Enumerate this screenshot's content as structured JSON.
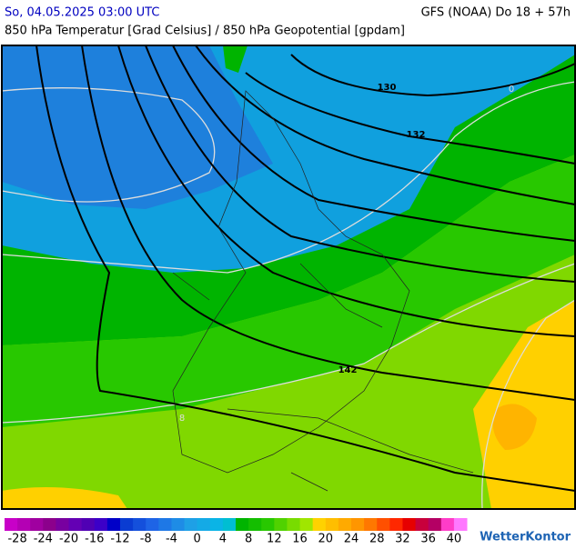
{
  "header": {
    "date": "So, 04.05.2025 03:00 UTC",
    "model": "GFS (NOAA) Do 18 + 57h",
    "subtitle": "850 hPa Temperatur [Grad Celsius] / 850 hPa Geopotential [gpdam]"
  },
  "map": {
    "contour_labels": [
      "130",
      "132",
      "142"
    ],
    "isotherm_labels": [
      "0",
      "8"
    ]
  },
  "colorbar": {
    "range": [
      -30,
      42
    ],
    "ticks": [
      -28,
      -24,
      -20,
      -16,
      -12,
      -8,
      -4,
      0,
      4,
      8,
      12,
      16,
      20,
      24,
      28,
      32,
      36,
      40
    ],
    "colors": [
      "#c800c8",
      "#b400b4",
      "#a000a0",
      "#8c008c",
      "#7800a0",
      "#6400b4",
      "#5000b4",
      "#3c00c8",
      "#0000c8",
      "#0a3cd2",
      "#1450dc",
      "#1e64e6",
      "#1e78e6",
      "#1e8ce6",
      "#1ea0e6",
      "#14aae6",
      "#0ab4e6",
      "#00bed2",
      "#00b400",
      "#14be00",
      "#28c800",
      "#50d200",
      "#78dc00",
      "#a0e600",
      "#ffd200",
      "#ffbe00",
      "#ffaa00",
      "#ff9600",
      "#ff7800",
      "#ff5000",
      "#ff2800",
      "#e60000",
      "#c8003c",
      "#b40064",
      "#ff3cc8",
      "#ff78ff"
    ]
  },
  "logo": "WetterKontor"
}
